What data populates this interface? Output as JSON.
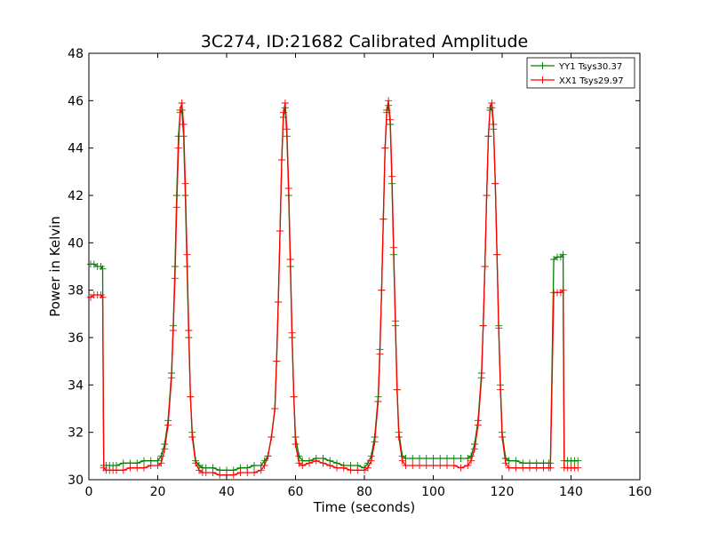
{
  "chart_data": {
    "type": "line",
    "title": "3C274, ID:21682 Calibrated Amplitude",
    "xlabel": "Time (seconds)",
    "ylabel": "Power in Kelvin",
    "xlim": [
      0,
      160
    ],
    "ylim": [
      30,
      48
    ],
    "xticks": [
      0,
      20,
      40,
      60,
      80,
      100,
      120,
      140,
      160
    ],
    "yticks": [
      30,
      32,
      34,
      36,
      38,
      40,
      42,
      44,
      46,
      48
    ],
    "grid": false,
    "legend_position": "top-right",
    "marker": "plus",
    "series": [
      {
        "name": "YY1 Tsys30.37",
        "color": "#008000",
        "x": [
          0.5,
          1.5,
          2.5,
          3.5,
          4.0,
          4.3,
          5,
          6,
          7,
          8,
          10,
          12,
          14,
          16,
          18,
          20,
          21,
          22,
          23,
          24,
          24.5,
          25,
          25.5,
          26,
          26.5,
          27,
          27.5,
          28,
          28.5,
          29,
          29.5,
          30,
          31,
          32,
          33,
          34,
          36,
          38,
          40,
          42,
          44,
          46,
          48,
          50,
          51,
          52,
          53,
          54,
          54.5,
          55,
          55.5,
          56,
          56.5,
          57,
          57.5,
          58,
          58.5,
          59,
          59.5,
          60,
          61,
          62,
          64,
          66,
          68,
          70,
          72,
          74,
          76,
          78,
          80,
          81,
          82,
          83,
          84,
          84.5,
          85,
          85.5,
          86,
          86.5,
          87,
          87.5,
          88,
          88.5,
          89,
          89.5,
          90,
          91,
          92,
          94,
          96,
          98,
          100,
          102,
          104,
          106,
          108,
          110,
          111,
          112,
          113,
          114,
          114.5,
          115,
          115.5,
          116,
          116.5,
          117,
          117.5,
          118,
          118.5,
          119,
          119.5,
          120,
          121,
          122,
          124,
          126,
          128,
          130,
          132,
          133.5,
          134,
          135,
          136,
          137,
          137.7,
          138,
          139,
          140,
          141,
          142
        ],
        "y": [
          39.1,
          39.1,
          39.0,
          39.0,
          38.9,
          30.6,
          30.6,
          30.6,
          30.6,
          30.6,
          30.7,
          30.7,
          30.7,
          30.8,
          30.8,
          30.8,
          31.0,
          31.5,
          32.5,
          34.5,
          36.5,
          39.0,
          42.0,
          44.5,
          45.5,
          45.6,
          44.5,
          42.0,
          39.0,
          36.0,
          33.5,
          32.0,
          30.8,
          30.6,
          30.5,
          30.5,
          30.5,
          30.4,
          30.4,
          30.4,
          30.5,
          30.5,
          30.6,
          30.6,
          30.8,
          31.0,
          31.8,
          33.0,
          35.0,
          37.5,
          40.5,
          43.5,
          45.3,
          45.7,
          44.5,
          42.0,
          39.0,
          36.0,
          33.5,
          31.8,
          31.0,
          30.8,
          30.8,
          30.9,
          30.9,
          30.8,
          30.7,
          30.6,
          30.6,
          30.6,
          30.5,
          30.7,
          31.0,
          31.8,
          33.5,
          35.5,
          38.0,
          41.0,
          44.0,
          45.5,
          45.8,
          45.0,
          42.5,
          39.5,
          36.5,
          33.8,
          32.0,
          31.0,
          30.9,
          30.9,
          30.9,
          30.9,
          30.9,
          30.9,
          30.9,
          30.9,
          30.9,
          30.9,
          31.0,
          31.5,
          32.5,
          34.5,
          36.5,
          39.0,
          42.0,
          44.5,
          45.6,
          45.7,
          44.8,
          42.5,
          39.5,
          36.5,
          34.0,
          32.0,
          30.9,
          30.8,
          30.8,
          30.7,
          30.7,
          30.7,
          30.7,
          30.7,
          30.7,
          39.3,
          39.4,
          39.4,
          39.5,
          30.8,
          30.8,
          30.8,
          30.8,
          30.8
        ]
      },
      {
        "name": "XX1 Tsys29.97",
        "color": "#ff0000",
        "x": [
          0.5,
          1.5,
          2.5,
          3.5,
          4.0,
          4.3,
          5,
          6,
          7,
          8,
          10,
          12,
          14,
          16,
          18,
          20,
          21,
          22,
          23,
          24,
          24.5,
          25,
          25.5,
          26,
          26.5,
          27,
          27.5,
          28,
          28.5,
          29,
          29.5,
          30,
          31,
          32,
          33,
          34,
          36,
          38,
          40,
          42,
          44,
          46,
          48,
          50,
          51,
          52,
          53,
          54,
          54.5,
          55,
          55.5,
          56,
          56.5,
          57,
          57.5,
          58,
          58.5,
          59,
          59.5,
          60,
          61,
          62,
          64,
          66,
          68,
          70,
          72,
          74,
          76,
          78,
          80,
          81,
          82,
          83,
          84,
          84.5,
          85,
          85.5,
          86,
          86.5,
          87,
          87.5,
          88,
          88.5,
          89,
          89.5,
          90,
          91,
          92,
          94,
          96,
          98,
          100,
          102,
          104,
          106,
          108,
          110,
          111,
          112,
          113,
          114,
          114.5,
          115,
          115.5,
          116,
          116.5,
          117,
          117.5,
          118,
          118.5,
          119,
          119.5,
          120,
          121,
          122,
          124,
          126,
          128,
          130,
          132,
          133.5,
          134,
          135,
          136,
          137,
          137.7,
          138,
          139,
          140,
          141,
          142
        ],
        "y": [
          37.7,
          37.8,
          37.8,
          37.8,
          37.7,
          30.5,
          30.4,
          30.4,
          30.4,
          30.4,
          30.4,
          30.5,
          30.5,
          30.5,
          30.6,
          30.6,
          30.7,
          31.3,
          32.3,
          34.3,
          36.3,
          38.5,
          41.5,
          44.0,
          45.6,
          45.9,
          45.0,
          42.5,
          39.5,
          36.3,
          33.5,
          31.8,
          30.7,
          30.4,
          30.3,
          30.3,
          30.3,
          30.2,
          30.2,
          30.2,
          30.3,
          30.3,
          30.3,
          30.4,
          30.6,
          31.0,
          31.8,
          33.0,
          35.0,
          37.5,
          40.5,
          43.5,
          45.5,
          45.9,
          44.8,
          42.3,
          39.3,
          36.2,
          33.5,
          31.5,
          30.7,
          30.6,
          30.7,
          30.8,
          30.7,
          30.6,
          30.5,
          30.5,
          30.4,
          30.4,
          30.4,
          30.5,
          30.8,
          31.6,
          33.3,
          35.3,
          38.0,
          41.0,
          44.0,
          45.6,
          46.0,
          45.2,
          42.8,
          39.8,
          36.7,
          33.8,
          31.8,
          30.8,
          30.6,
          30.6,
          30.6,
          30.6,
          30.6,
          30.6,
          30.6,
          30.6,
          30.5,
          30.6,
          30.8,
          31.3,
          32.3,
          34.3,
          36.5,
          39.0,
          42.0,
          44.5,
          45.7,
          45.9,
          45.0,
          42.5,
          39.5,
          36.4,
          33.8,
          31.8,
          30.7,
          30.5,
          30.5,
          30.5,
          30.5,
          30.5,
          30.5,
          30.5,
          30.5,
          37.9,
          37.9,
          37.9,
          38.0,
          30.5,
          30.5,
          30.5,
          30.5,
          30.5
        ]
      }
    ]
  }
}
